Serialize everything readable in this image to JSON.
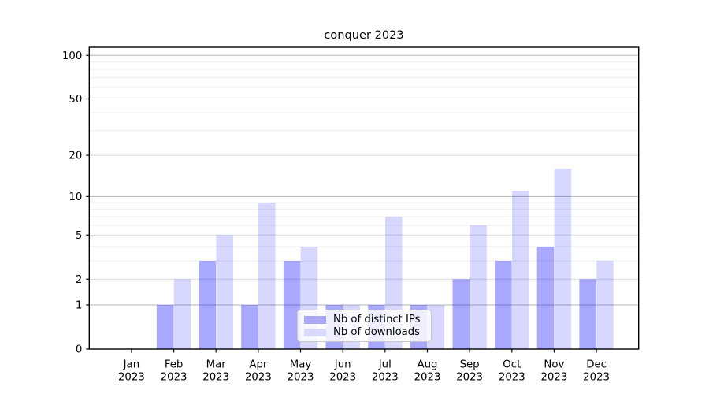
{
  "title": "conquer 2023",
  "chart_data": {
    "type": "bar",
    "title": "conquer 2023",
    "xlabel": "",
    "ylabel": "",
    "y_scale": "log1p",
    "year": "2023",
    "categories": [
      "Jan",
      "Feb",
      "Mar",
      "Apr",
      "May",
      "Jun",
      "Jul",
      "Aug",
      "Sep",
      "Oct",
      "Nov",
      "Dec"
    ],
    "series": [
      {
        "name": "Nb of distinct IPs",
        "values": [
          0,
          1,
          3,
          1,
          3,
          1,
          1,
          1,
          2,
          3,
          4,
          2
        ],
        "fill": "rgba(0,0,255,0.34)",
        "legend_color": "#a9a9f7"
      },
      {
        "name": "Nb of downloads",
        "values": [
          0,
          2,
          5,
          9,
          4,
          1,
          7,
          1,
          6,
          11,
          16,
          3
        ],
        "fill": "rgba(0,0,255,0.155)",
        "legend_color": "#d9d9fb"
      }
    ],
    "yticks": [
      0,
      1,
      2,
      5,
      10,
      20,
      50,
      100
    ],
    "gridlines": {
      "major": {
        "values": [
          1,
          10,
          100
        ],
        "color": "#b6b6b6"
      },
      "medium": {
        "values": [
          2,
          5,
          20,
          50
        ],
        "color": "#dadada"
      },
      "minor": {
        "values": [
          3,
          4,
          6,
          7,
          8,
          9,
          30,
          40,
          60,
          70,
          80,
          90
        ],
        "color": "#ececec"
      }
    },
    "grid": true,
    "legend_position": "lower center",
    "ylim_top_value": 114,
    "axis_color": "#000000"
  }
}
